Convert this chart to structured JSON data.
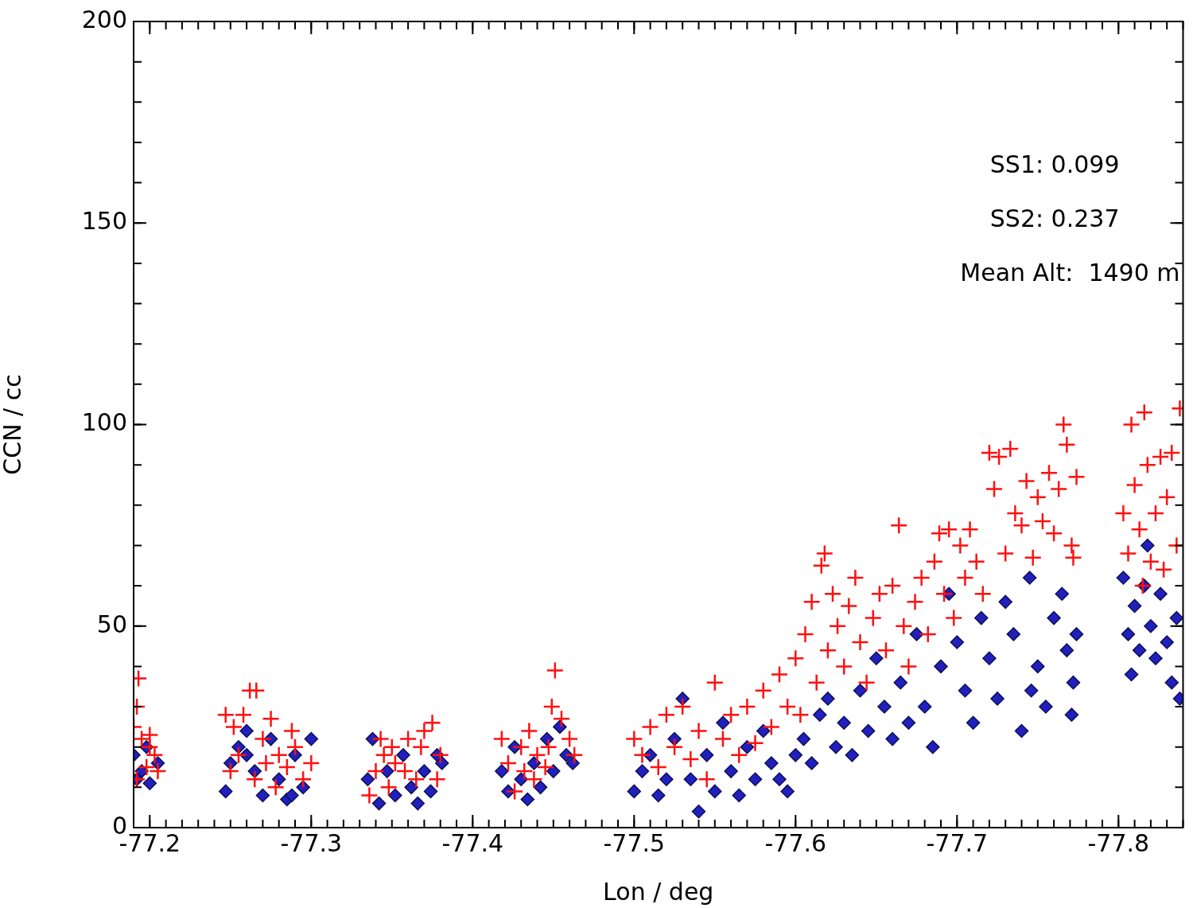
{
  "chart_data": {
    "type": "scatter",
    "xlabel": "Lon / deg",
    "ylabel": "CCN / cc",
    "xlim": [
      -77.19,
      -77.84
    ],
    "ylim": [
      0,
      200
    ],
    "xticks": [
      -77.2,
      -77.3,
      -77.4,
      -77.5,
      -77.6,
      -77.7,
      -77.8
    ],
    "yticks": [
      0,
      50,
      100,
      150,
      200
    ],
    "grid": false,
    "legend": false,
    "annotations": [
      "SS1: 0.099",
      "SS2: 0.237",
      "Mean Alt:  1490 m"
    ],
    "series": [
      {
        "color": "#ff1010",
        "marker": "cross",
        "x": [
          -77.192,
          -77.193,
          -77.19,
          -77.195,
          -77.2,
          -77.203,
          -77.198,
          -77.205,
          -77.192,
          -77.2,
          -77.247,
          -77.252,
          -77.258,
          -77.262,
          -77.266,
          -77.27,
          -77.275,
          -77.28,
          -77.285,
          -77.29,
          -77.295,
          -77.3,
          -77.255,
          -77.265,
          -77.278,
          -77.288,
          -77.25,
          -77.272,
          -77.336,
          -77.34,
          -77.345,
          -77.35,
          -77.352,
          -77.36,
          -77.365,
          -77.37,
          -77.375,
          -77.38,
          -77.348,
          -77.358,
          -77.368,
          -77.378,
          -77.343,
          -77.418,
          -77.422,
          -77.426,
          -77.43,
          -77.435,
          -77.44,
          -77.445,
          -77.449,
          -77.451,
          -77.455,
          -77.46,
          -77.463,
          -77.438,
          -77.447,
          -77.432,
          -77.5,
          -77.505,
          -77.51,
          -77.515,
          -77.52,
          -77.525,
          -77.53,
          -77.535,
          -77.54,
          -77.545,
          -77.55,
          -77.555,
          -77.56,
          -77.565,
          -77.57,
          -77.575,
          -77.58,
          -77.585,
          -77.59,
          -77.595,
          -77.6,
          -77.603,
          -77.606,
          -77.61,
          -77.613,
          -77.616,
          -77.618,
          -77.62,
          -77.623,
          -77.626,
          -77.63,
          -77.633,
          -77.637,
          -77.64,
          -77.644,
          -77.648,
          -77.652,
          -77.656,
          -77.66,
          -77.664,
          -77.667,
          -77.67,
          -77.674,
          -77.678,
          -77.682,
          -77.686,
          -77.689,
          -77.692,
          -77.695,
          -77.698,
          -77.702,
          -77.705,
          -77.708,
          -77.712,
          -77.716,
          -77.72,
          -77.723,
          -77.726,
          -77.73,
          -77.733,
          -77.736,
          -77.74,
          -77.743,
          -77.747,
          -77.75,
          -77.753,
          -77.757,
          -77.76,
          -77.763,
          -77.766,
          -77.768,
          -77.771,
          -77.774,
          -77.772,
          -77.803,
          -77.806,
          -77.808,
          -77.81,
          -77.813,
          -77.816,
          -77.818,
          -77.82,
          -77.823,
          -77.826,
          -77.83,
          -77.833,
          -77.836,
          -77.838,
          -77.815,
          -77.828
        ],
        "values": [
          30,
          37,
          25,
          22,
          20,
          18,
          15,
          14,
          12,
          23,
          28,
          25,
          28,
          34,
          34,
          22,
          27,
          18,
          15,
          20,
          12,
          16,
          18,
          12,
          10,
          24,
          14,
          16,
          8,
          14,
          18,
          20,
          16,
          22,
          12,
          24,
          26,
          18,
          10,
          14,
          20,
          12,
          22,
          22,
          16,
          9,
          20,
          24,
          18,
          15,
          30,
          39,
          27,
          22,
          18,
          12,
          20,
          14,
          22,
          18,
          25,
          15,
          28,
          20,
          30,
          17,
          24,
          12,
          36,
          22,
          28,
          18,
          30,
          21,
          34,
          25,
          38,
          30,
          42,
          28,
          48,
          56,
          36,
          65,
          68,
          44,
          58,
          50,
          40,
          55,
          62,
          46,
          36,
          52,
          58,
          44,
          60,
          75,
          50,
          40,
          56,
          62,
          48,
          66,
          73,
          58,
          74,
          52,
          70,
          62,
          74,
          66,
          58,
          93,
          84,
          92,
          68,
          94,
          78,
          75,
          86,
          67,
          82,
          76,
          88,
          73,
          84,
          100,
          95,
          70,
          87,
          67,
          78,
          68,
          100,
          85,
          74,
          103,
          90,
          66,
          78,
          92,
          82,
          93,
          70,
          104,
          60,
          64
        ]
      },
      {
        "color": "#2020c0",
        "marker": "diamond",
        "x": [
          -77.19,
          -77.195,
          -77.2,
          -77.205,
          -77.198,
          -77.192,
          -77.247,
          -77.25,
          -77.255,
          -77.26,
          -77.265,
          -77.27,
          -77.275,
          -77.28,
          -77.285,
          -77.29,
          -77.295,
          -77.3,
          -77.26,
          -77.288,
          -77.335,
          -77.338,
          -77.342,
          -77.347,
          -77.352,
          -77.357,
          -77.362,
          -77.366,
          -77.37,
          -77.374,
          -77.378,
          -77.381,
          -77.418,
          -77.422,
          -77.426,
          -77.43,
          -77.434,
          -77.438,
          -77.442,
          -77.446,
          -77.45,
          -77.454,
          -77.458,
          -77.462,
          -77.5,
          -77.505,
          -77.51,
          -77.515,
          -77.52,
          -77.525,
          -77.53,
          -77.535,
          -77.54,
          -77.545,
          -77.55,
          -77.555,
          -77.56,
          -77.565,
          -77.57,
          -77.575,
          -77.58,
          -77.585,
          -77.59,
          -77.595,
          -77.6,
          -77.605,
          -77.61,
          -77.615,
          -77.62,
          -77.625,
          -77.63,
          -77.635,
          -77.64,
          -77.645,
          -77.65,
          -77.655,
          -77.66,
          -77.665,
          -77.67,
          -77.675,
          -77.68,
          -77.685,
          -77.69,
          -77.695,
          -77.7,
          -77.705,
          -77.71,
          -77.715,
          -77.72,
          -77.725,
          -77.73,
          -77.735,
          -77.74,
          -77.745,
          -77.75,
          -77.755,
          -77.76,
          -77.765,
          -77.768,
          -77.771,
          -77.774,
          -77.772,
          -77.746,
          -77.803,
          -77.806,
          -77.808,
          -77.81,
          -77.813,
          -77.816,
          -77.82,
          -77.823,
          -77.826,
          -77.83,
          -77.833,
          -77.836,
          -77.838,
          -77.818
        ],
        "values": [
          18,
          14,
          11,
          16,
          20,
          12,
          9,
          16,
          20,
          18,
          14,
          8,
          22,
          12,
          7,
          18,
          10,
          22,
          24,
          8,
          12,
          22,
          6,
          14,
          8,
          18,
          10,
          6,
          14,
          9,
          18,
          16,
          14,
          9,
          20,
          12,
          7,
          16,
          10,
          22,
          14,
          25,
          18,
          16,
          9,
          14,
          18,
          8,
          12,
          22,
          32,
          12,
          4,
          18,
          9,
          26,
          14,
          8,
          20,
          12,
          24,
          16,
          12,
          9,
          18,
          22,
          16,
          28,
          32,
          20,
          26,
          18,
          34,
          24,
          42,
          30,
          22,
          36,
          26,
          48,
          30,
          20,
          40,
          58,
          46,
          34,
          26,
          52,
          42,
          32,
          56,
          48,
          24,
          62,
          40,
          30,
          52,
          58,
          44,
          28,
          48,
          36,
          34,
          62,
          48,
          38,
          55,
          44,
          60,
          50,
          42,
          58,
          46,
          36,
          52,
          32,
          70
        ]
      }
    ]
  }
}
